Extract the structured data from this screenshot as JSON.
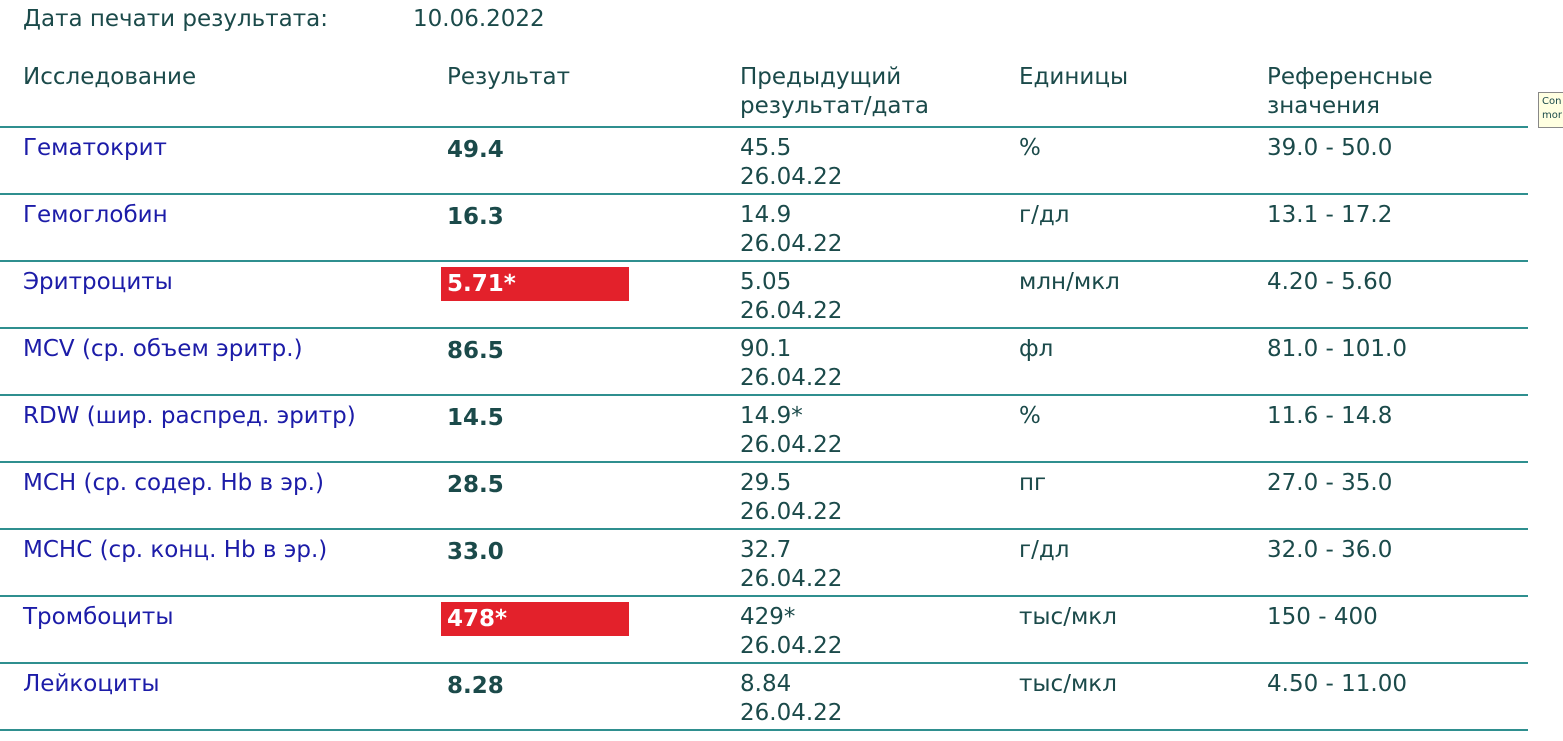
{
  "header": {
    "label": "Дата печати результата:",
    "date": "10.06.2022"
  },
  "table": {
    "columns": [
      [
        "Исследование"
      ],
      [
        "Результат"
      ],
      [
        "Предыдущий",
        "результат/дата"
      ],
      [
        "Единицы"
      ],
      [
        "Референсные",
        "значения"
      ]
    ],
    "rows": [
      {
        "name": "Гематокрит",
        "result": "49.4",
        "highlight": false,
        "previous": "45.5",
        "previous_date": "26.04.22",
        "units": "%",
        "reference": "39.0 - 50.0"
      },
      {
        "name": "Гемоглобин",
        "result": "16.3",
        "highlight": false,
        "previous": "14.9",
        "previous_date": "26.04.22",
        "units": "г/дл",
        "reference": "13.1 - 17.2"
      },
      {
        "name": "Эритроциты",
        "result": "5.71*",
        "highlight": true,
        "previous": "5.05",
        "previous_date": "26.04.22",
        "units": "млн/мкл",
        "reference": "4.20 - 5.60"
      },
      {
        "name": "MCV (ср. объем эритр.)",
        "result": "86.5",
        "highlight": false,
        "previous": "90.1",
        "previous_date": "26.04.22",
        "units": "фл",
        "reference": "81.0 - 101.0"
      },
      {
        "name": "RDW (шир. распред. эритр)",
        "result": "14.5",
        "highlight": false,
        "previous": "14.9*",
        "previous_date": "26.04.22",
        "units": "%",
        "reference": "11.6 - 14.8"
      },
      {
        "name": "MCH (ср. содер. Hb в эр.)",
        "result": "28.5",
        "highlight": false,
        "previous": "29.5",
        "previous_date": "26.04.22",
        "units": "пг",
        "reference": "27.0 - 35.0"
      },
      {
        "name": "MCHC (ср. конц. Hb в эр.)",
        "result": "33.0",
        "highlight": false,
        "previous": "32.7",
        "previous_date": "26.04.22",
        "units": "г/дл",
        "reference": "32.0 - 36.0"
      },
      {
        "name": "Тромбоциты",
        "result": "478*",
        "highlight": true,
        "previous": "429*",
        "previous_date": "26.04.22",
        "units": "тыс/мкл",
        "reference": "150 - 400"
      },
      {
        "name": "Лейкоциты",
        "result": "8.28",
        "highlight": false,
        "previous": "8.84",
        "previous_date": "26.04.22",
        "units": "тыс/мкл",
        "reference": "4.50 - 11.00"
      }
    ]
  },
  "tooltip": [
    "Con",
    "mor"
  ]
}
